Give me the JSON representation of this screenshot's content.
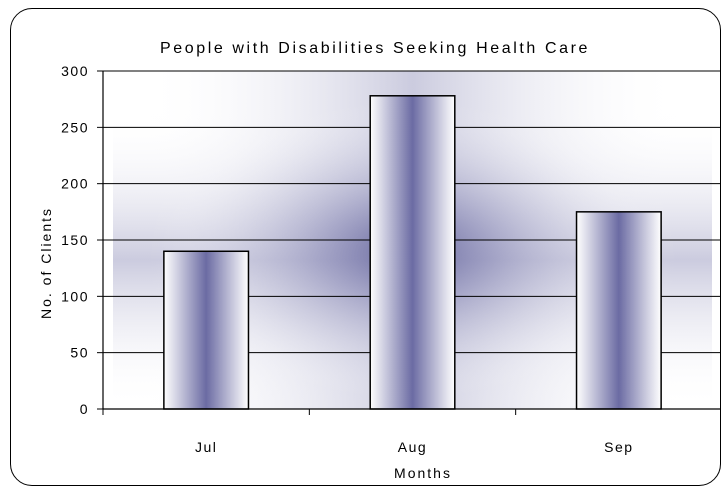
{
  "chart_data": {
    "type": "bar",
    "title": "People with Disabilities Seeking Health Care",
    "xlabel": "Months",
    "ylabel": "No. of Clients",
    "categories": [
      "Jul",
      "Aug",
      "Sep"
    ],
    "values": [
      140,
      278,
      175
    ],
    "ylim": [
      0,
      300
    ],
    "yticks": [
      "0",
      "50",
      "100",
      "150",
      "200",
      "250",
      "300"
    ],
    "grid": true,
    "legend": "none",
    "colors": {
      "bar_center": "#6b6ba3",
      "bar_edge": "#ffffff",
      "background_glow": "#6b6ba3",
      "gridline": "#000000",
      "border": "#000000"
    }
  }
}
